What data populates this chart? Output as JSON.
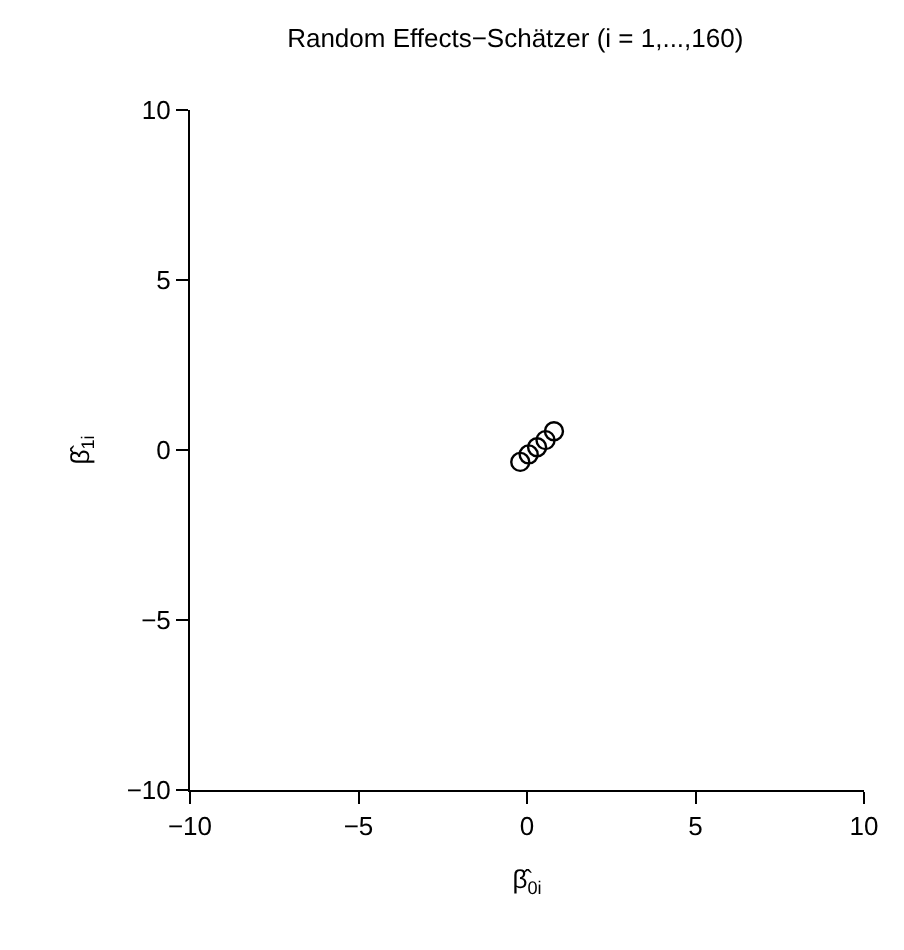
{
  "chart_data": {
    "type": "scatter",
    "title": "Random Effects−Schätzer (i = 1,...,160)",
    "xlabel": "β̂$_{0i}$",
    "ylabel": "β̂$_{1i}$",
    "x": [
      -0.2,
      0.05,
      0.3,
      0.55,
      0.8
    ],
    "values": [
      -0.35,
      -0.13,
      0.08,
      0.29,
      0.55
    ],
    "color": "#000000",
    "marker": "circle",
    "xlim": [
      -10,
      10
    ],
    "ylim": [
      -10,
      10
    ],
    "xticks": [
      {
        "value": -10,
        "label": "−10"
      },
      {
        "value": -5,
        "label": "−5"
      },
      0,
      5,
      10
    ],
    "yticks": [
      {
        "value": -10,
        "label": "−10"
      },
      {
        "value": -5,
        "label": "−5"
      },
      0,
      5,
      10
    ],
    "legend": false
  }
}
